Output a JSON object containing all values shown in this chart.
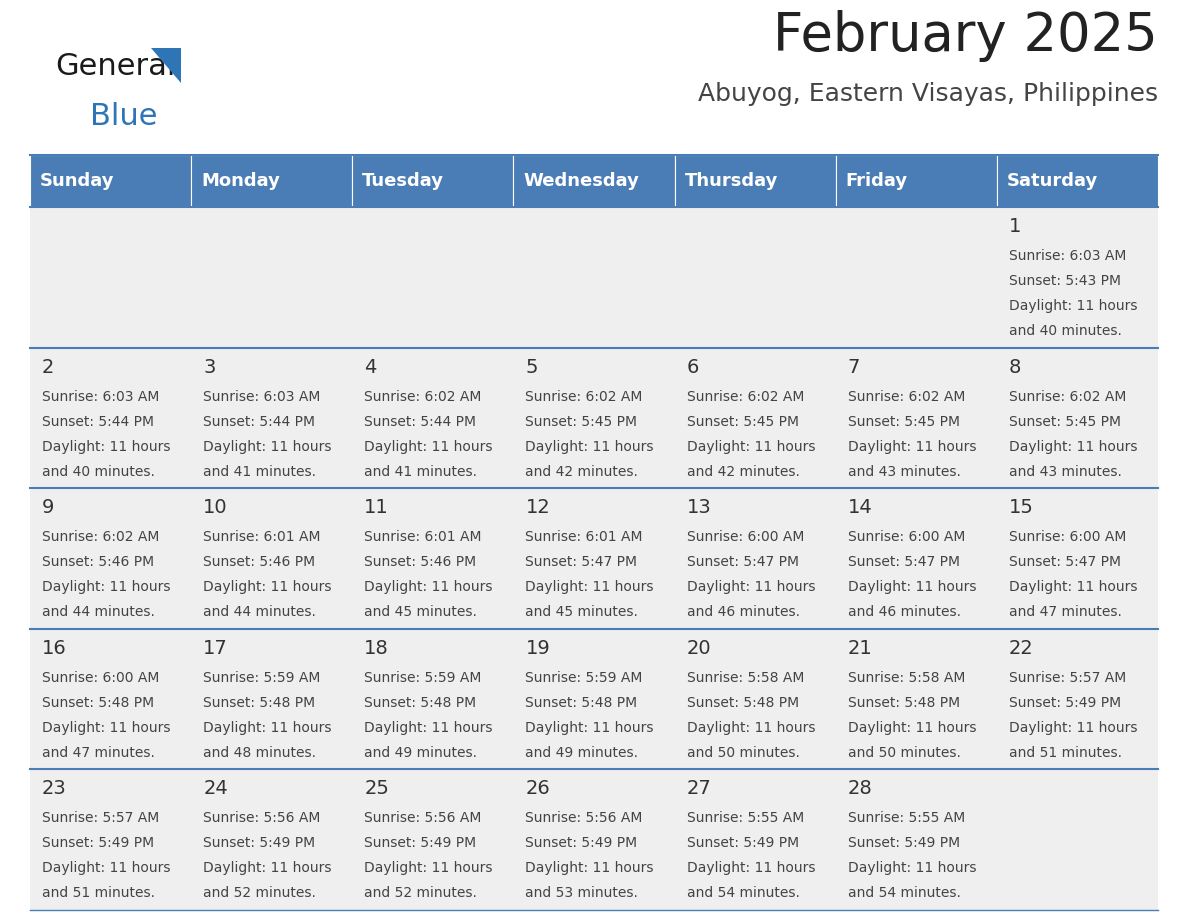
{
  "title": "February 2025",
  "subtitle": "Abuyog, Eastern Visayas, Philippines",
  "header_bg": "#4A7DB5",
  "header_text_color": "#FFFFFF",
  "cell_bg_light": "#EFEFEF",
  "cell_bg_white": "#FFFFFF",
  "border_color": "#4A7DB5",
  "days_of_week": [
    "Sunday",
    "Monday",
    "Tuesday",
    "Wednesday",
    "Thursday",
    "Friday",
    "Saturday"
  ],
  "title_color": "#222222",
  "subtitle_color": "#444444",
  "day_num_color": "#333333",
  "cell_text_color": "#444444",
  "logo_general_color": "#1a1a1a",
  "logo_blue_color": "#2E75B6",
  "calendar_data": [
    [
      null,
      null,
      null,
      null,
      null,
      null,
      {
        "day": 1,
        "sunrise": "6:03 AM",
        "sunset": "5:43 PM",
        "daylight_h": "11 hours",
        "daylight_m": "and 40 minutes."
      }
    ],
    [
      {
        "day": 2,
        "sunrise": "6:03 AM",
        "sunset": "5:44 PM",
        "daylight_h": "11 hours",
        "daylight_m": "and 40 minutes."
      },
      {
        "day": 3,
        "sunrise": "6:03 AM",
        "sunset": "5:44 PM",
        "daylight_h": "11 hours",
        "daylight_m": "and 41 minutes."
      },
      {
        "day": 4,
        "sunrise": "6:02 AM",
        "sunset": "5:44 PM",
        "daylight_h": "11 hours",
        "daylight_m": "and 41 minutes."
      },
      {
        "day": 5,
        "sunrise": "6:02 AM",
        "sunset": "5:45 PM",
        "daylight_h": "11 hours",
        "daylight_m": "and 42 minutes."
      },
      {
        "day": 6,
        "sunrise": "6:02 AM",
        "sunset": "5:45 PM",
        "daylight_h": "11 hours",
        "daylight_m": "and 42 minutes."
      },
      {
        "day": 7,
        "sunrise": "6:02 AM",
        "sunset": "5:45 PM",
        "daylight_h": "11 hours",
        "daylight_m": "and 43 minutes."
      },
      {
        "day": 8,
        "sunrise": "6:02 AM",
        "sunset": "5:45 PM",
        "daylight_h": "11 hours",
        "daylight_m": "and 43 minutes."
      }
    ],
    [
      {
        "day": 9,
        "sunrise": "6:02 AM",
        "sunset": "5:46 PM",
        "daylight_h": "11 hours",
        "daylight_m": "and 44 minutes."
      },
      {
        "day": 10,
        "sunrise": "6:01 AM",
        "sunset": "5:46 PM",
        "daylight_h": "11 hours",
        "daylight_m": "and 44 minutes."
      },
      {
        "day": 11,
        "sunrise": "6:01 AM",
        "sunset": "5:46 PM",
        "daylight_h": "11 hours",
        "daylight_m": "and 45 minutes."
      },
      {
        "day": 12,
        "sunrise": "6:01 AM",
        "sunset": "5:47 PM",
        "daylight_h": "11 hours",
        "daylight_m": "and 45 minutes."
      },
      {
        "day": 13,
        "sunrise": "6:00 AM",
        "sunset": "5:47 PM",
        "daylight_h": "11 hours",
        "daylight_m": "and 46 minutes."
      },
      {
        "day": 14,
        "sunrise": "6:00 AM",
        "sunset": "5:47 PM",
        "daylight_h": "11 hours",
        "daylight_m": "and 46 minutes."
      },
      {
        "day": 15,
        "sunrise": "6:00 AM",
        "sunset": "5:47 PM",
        "daylight_h": "11 hours",
        "daylight_m": "and 47 minutes."
      }
    ],
    [
      {
        "day": 16,
        "sunrise": "6:00 AM",
        "sunset": "5:48 PM",
        "daylight_h": "11 hours",
        "daylight_m": "and 47 minutes."
      },
      {
        "day": 17,
        "sunrise": "5:59 AM",
        "sunset": "5:48 PM",
        "daylight_h": "11 hours",
        "daylight_m": "and 48 minutes."
      },
      {
        "day": 18,
        "sunrise": "5:59 AM",
        "sunset": "5:48 PM",
        "daylight_h": "11 hours",
        "daylight_m": "and 49 minutes."
      },
      {
        "day": 19,
        "sunrise": "5:59 AM",
        "sunset": "5:48 PM",
        "daylight_h": "11 hours",
        "daylight_m": "and 49 minutes."
      },
      {
        "day": 20,
        "sunrise": "5:58 AM",
        "sunset": "5:48 PM",
        "daylight_h": "11 hours",
        "daylight_m": "and 50 minutes."
      },
      {
        "day": 21,
        "sunrise": "5:58 AM",
        "sunset": "5:48 PM",
        "daylight_h": "11 hours",
        "daylight_m": "and 50 minutes."
      },
      {
        "day": 22,
        "sunrise": "5:57 AM",
        "sunset": "5:49 PM",
        "daylight_h": "11 hours",
        "daylight_m": "and 51 minutes."
      }
    ],
    [
      {
        "day": 23,
        "sunrise": "5:57 AM",
        "sunset": "5:49 PM",
        "daylight_h": "11 hours",
        "daylight_m": "and 51 minutes."
      },
      {
        "day": 24,
        "sunrise": "5:56 AM",
        "sunset": "5:49 PM",
        "daylight_h": "11 hours",
        "daylight_m": "and 52 minutes."
      },
      {
        "day": 25,
        "sunrise": "5:56 AM",
        "sunset": "5:49 PM",
        "daylight_h": "11 hours",
        "daylight_m": "and 52 minutes."
      },
      {
        "day": 26,
        "sunrise": "5:56 AM",
        "sunset": "5:49 PM",
        "daylight_h": "11 hours",
        "daylight_m": "and 53 minutes."
      },
      {
        "day": 27,
        "sunrise": "5:55 AM",
        "sunset": "5:49 PM",
        "daylight_h": "11 hours",
        "daylight_m": "and 54 minutes."
      },
      {
        "day": 28,
        "sunrise": "5:55 AM",
        "sunset": "5:49 PM",
        "daylight_h": "11 hours",
        "daylight_m": "and 54 minutes."
      },
      null
    ]
  ]
}
